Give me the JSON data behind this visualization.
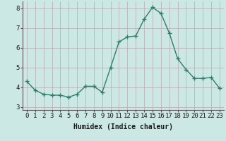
{
  "x": [
    0,
    1,
    2,
    3,
    4,
    5,
    6,
    7,
    8,
    9,
    10,
    11,
    12,
    13,
    14,
    15,
    16,
    17,
    18,
    19,
    20,
    21,
    22,
    23
  ],
  "y": [
    4.3,
    3.85,
    3.65,
    3.6,
    3.6,
    3.5,
    3.65,
    4.05,
    4.05,
    3.75,
    5.0,
    6.3,
    6.55,
    6.6,
    7.45,
    8.05,
    7.75,
    6.75,
    5.45,
    4.9,
    4.45,
    4.45,
    4.5,
    3.95
  ],
  "line_color": "#2e7d6e",
  "marker": "+",
  "marker_size": 4,
  "marker_linewidth": 1.0,
  "line_width": 1.0,
  "bg_color": "#cce8e5",
  "grid_color": "#b8a8b0",
  "xlabel": "Humidex (Indice chaleur)",
  "xlabel_fontsize": 7,
  "xlabel_weight": "bold",
  "ylabel_ticks": [
    3,
    4,
    5,
    6,
    7,
    8
  ],
  "ylim": [
    2.85,
    8.35
  ],
  "xlim": [
    -0.5,
    23.5
  ],
  "tick_fontsize": 6.5
}
